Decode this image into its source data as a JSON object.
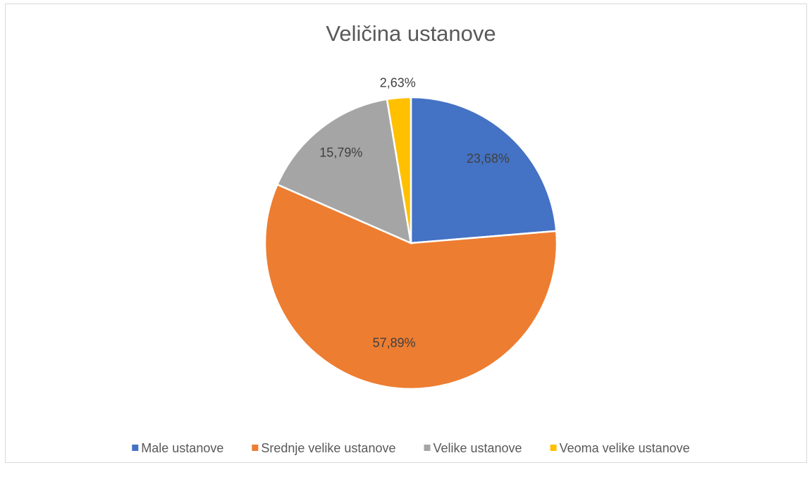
{
  "chart_data": {
    "type": "pie",
    "title": "Veličina ustanove",
    "categories": [
      "Male ustanove",
      "Srednje velike ustanove",
      "Velike ustanove",
      "Veoma velike ustanove"
    ],
    "values": [
      23.68,
      57.89,
      15.79,
      2.63
    ],
    "value_labels": [
      "23,68%",
      "57,89%",
      "15,79%",
      "2,63%"
    ],
    "colors": [
      "#4472c4",
      "#ed7d31",
      "#a5a5a5",
      "#ffc000"
    ],
    "legend": "bottom"
  }
}
